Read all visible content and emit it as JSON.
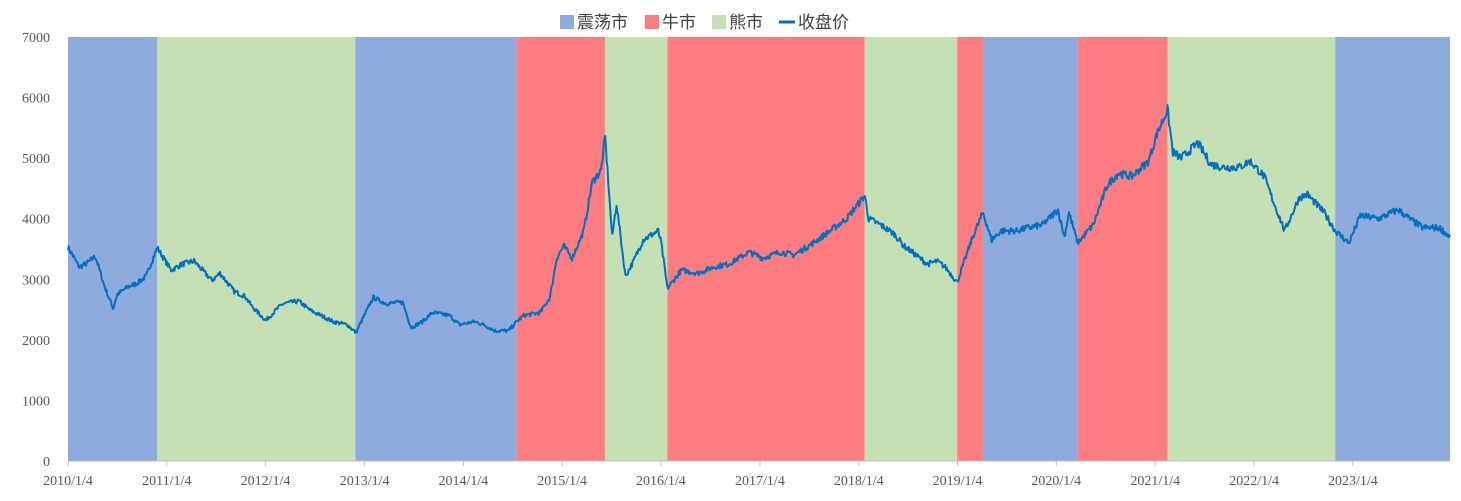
{
  "chart_data": {
    "type": "line",
    "title": "",
    "xlabel": "",
    "ylabel": "",
    "ylim": [
      0,
      7000
    ],
    "xlim": [
      "2010-01-04",
      "2023-12-29"
    ],
    "y_ticks": [
      0,
      1000,
      2000,
      3000,
      4000,
      5000,
      6000,
      7000
    ],
    "x_ticks": [
      {
        "label": "2010/1/4",
        "date": "2010-01-04"
      },
      {
        "label": "2011/1/4",
        "date": "2011-01-04"
      },
      {
        "label": "2012/1/4",
        "date": "2012-01-04"
      },
      {
        "label": "2013/1/4",
        "date": "2013-01-04"
      },
      {
        "label": "2014/1/4",
        "date": "2014-01-04"
      },
      {
        "label": "2015/1/4",
        "date": "2015-01-04"
      },
      {
        "label": "2016/1/4",
        "date": "2016-01-04"
      },
      {
        "label": "2017/1/4",
        "date": "2017-01-04"
      },
      {
        "label": "2018/1/4",
        "date": "2018-01-04"
      },
      {
        "label": "2019/1/4",
        "date": "2019-01-04"
      },
      {
        "label": "2020/1/4",
        "date": "2020-01-04"
      },
      {
        "label": "2021/1/4",
        "date": "2021-01-04"
      },
      {
        "label": "2022/1/4",
        "date": "2022-01-04"
      },
      {
        "label": "2023/1/4",
        "date": "2023-01-04"
      }
    ],
    "grid": false,
    "legend_position": "top-center",
    "legend": [
      {
        "key": "range",
        "label": "震荡市",
        "kind": "box",
        "color": "#8faadc"
      },
      {
        "key": "bull",
        "label": "牛市",
        "kind": "box",
        "color": "#ff7c80"
      },
      {
        "key": "bear",
        "label": "熊市",
        "kind": "box",
        "color": "#c5e0b4"
      },
      {
        "key": "close",
        "label": "收盘价",
        "kind": "line",
        "color": "#0070c0"
      }
    ],
    "regimes": [
      {
        "type": "range",
        "start": "2010-01-04",
        "end": "2010-11-30"
      },
      {
        "type": "bear",
        "start": "2010-11-30",
        "end": "2012-12-01"
      },
      {
        "type": "range",
        "start": "2012-12-01",
        "end": "2014-07-20"
      },
      {
        "type": "bull",
        "start": "2014-07-20",
        "end": "2015-06-12"
      },
      {
        "type": "bear",
        "start": "2015-06-12",
        "end": "2016-01-28"
      },
      {
        "type": "bull",
        "start": "2016-01-28",
        "end": "2018-01-26"
      },
      {
        "type": "bear",
        "start": "2018-01-26",
        "end": "2019-01-03"
      },
      {
        "type": "bull",
        "start": "2019-01-03",
        "end": "2019-04-08"
      },
      {
        "type": "range",
        "start": "2019-04-08",
        "end": "2020-03-23"
      },
      {
        "type": "bull",
        "start": "2020-03-23",
        "end": "2021-02-18"
      },
      {
        "type": "bear",
        "start": "2021-02-18",
        "end": "2022-10-31"
      },
      {
        "type": "range",
        "start": "2022-10-31",
        "end": "2023-12-29"
      }
    ],
    "series": [
      {
        "name": "收盘价",
        "x": [
          "2010-01-04",
          "2010-02-15",
          "2010-03-20",
          "2010-04-15",
          "2010-05-20",
          "2010-06-20",
          "2010-07-05",
          "2010-08-15",
          "2010-09-15",
          "2010-10-20",
          "2010-11-10",
          "2010-11-30",
          "2011-01-20",
          "2011-03-01",
          "2011-04-15",
          "2011-06-20",
          "2011-07-20",
          "2011-09-10",
          "2011-10-20",
          "2011-11-15",
          "2012-01-05",
          "2012-02-20",
          "2012-03-10",
          "2012-05-05",
          "2012-06-20",
          "2012-08-20",
          "2012-09-10",
          "2012-11-01",
          "2012-12-03",
          "2013-02-05",
          "2013-03-25",
          "2013-05-25",
          "2013-06-25",
          "2013-08-05",
          "2013-09-12",
          "2013-11-15",
          "2013-12-20",
          "2014-02-15",
          "2014-03-20",
          "2014-05-01",
          "2014-06-20",
          "2014-07-20",
          "2014-08-15",
          "2014-10-15",
          "2014-11-20",
          "2014-12-15",
          "2015-01-10",
          "2015-02-10",
          "2015-03-25",
          "2015-04-25",
          "2015-05-28",
          "2015-06-12",
          "2015-07-08",
          "2015-07-24",
          "2015-08-26",
          "2015-09-25",
          "2015-10-30",
          "2015-12-25",
          "2016-01-05",
          "2016-01-28",
          "2016-03-20",
          "2016-05-20",
          "2016-07-15",
          "2016-09-10",
          "2016-11-25",
          "2017-01-15",
          "2017-03-20",
          "2017-05-10",
          "2017-07-20",
          "2017-09-20",
          "2017-11-20",
          "2018-01-26",
          "2018-02-10",
          "2018-03-25",
          "2018-05-15",
          "2018-06-20",
          "2018-07-20",
          "2018-09-15",
          "2018-10-20",
          "2018-11-20",
          "2019-01-03",
          "2019-02-25",
          "2019-04-08",
          "2019-05-10",
          "2019-06-15",
          "2019-08-10",
          "2019-09-20",
          "2019-11-15",
          "2020-01-10",
          "2020-02-03",
          "2020-02-20",
          "2020-03-23",
          "2020-05-20",
          "2020-07-10",
          "2020-08-20",
          "2020-10-10",
          "2020-12-10",
          "2021-01-10",
          "2021-02-18",
          "2021-03-10",
          "2021-04-10",
          "2021-06-10",
          "2021-07-28",
          "2021-09-10",
          "2021-11-10",
          "2021-12-20",
          "2022-02-10",
          "2022-03-15",
          "2022-04-27",
          "2022-06-20",
          "2022-07-20",
          "2022-09-20",
          "2022-10-31",
          "2022-12-20",
          "2023-02-01",
          "2023-04-10",
          "2023-06-20",
          "2023-08-01",
          "2023-09-20",
          "2023-11-20",
          "2023-12-29"
        ],
        "y": [
          3530,
          3200,
          3280,
          3380,
          2870,
          2520,
          2750,
          2880,
          2930,
          3050,
          3300,
          3520,
          3150,
          3250,
          3300,
          2980,
          3100,
          2800,
          2720,
          2550,
          2320,
          2530,
          2600,
          2640,
          2480,
          2350,
          2300,
          2250,
          2120,
          2700,
          2600,
          2620,
          2200,
          2300,
          2450,
          2400,
          2250,
          2300,
          2250,
          2150,
          2150,
          2300,
          2400,
          2450,
          2700,
          3350,
          3550,
          3350,
          3800,
          4600,
          4800,
          5350,
          3700,
          4250,
          3050,
          3300,
          3650,
          3800,
          3600,
          2850,
          3150,
          3100,
          3200,
          3250,
          3450,
          3350,
          3450,
          3400,
          3600,
          3800,
          4000,
          4380,
          4000,
          3900,
          3750,
          3550,
          3450,
          3250,
          3300,
          3200,
          2950,
          3650,
          4100,
          3650,
          3800,
          3800,
          3850,
          3900,
          4150,
          3700,
          4100,
          3600,
          3900,
          4550,
          4750,
          4700,
          4950,
          5400,
          5800,
          5100,
          5000,
          5250,
          4900,
          4850,
          4850,
          4950,
          4700,
          4300,
          3800,
          4350,
          4400,
          4100,
          3800,
          3600,
          4050,
          4000,
          4150,
          4000,
          3850,
          3850,
          3700
        ]
      }
    ]
  }
}
